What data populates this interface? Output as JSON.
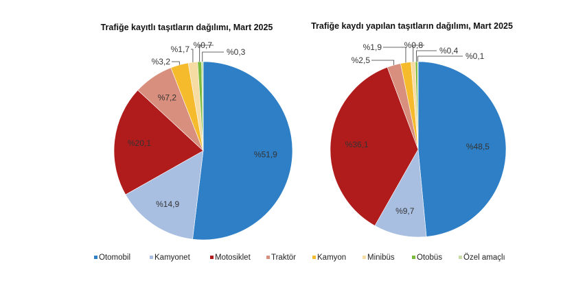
{
  "chart_data": [
    {
      "type": "pie",
      "title": "Trafiğe kayıtlı taşıtların dağılımı, Mart 2025",
      "categories": [
        "Otomobil",
        "Kamyonet",
        "Motosiklet",
        "Traktör",
        "Kamyon",
        "Minibüs",
        "Otobüs",
        "Özel amaçlı"
      ],
      "values": [
        51.9,
        14.9,
        20.1,
        7.2,
        3.2,
        1.7,
        0.7,
        0.3
      ],
      "labels": [
        "%51,9",
        "%14,9",
        "%20,1",
        "%7,2",
        "%3,2",
        "%1,7",
        "%0,7",
        "%0,3"
      ]
    },
    {
      "type": "pie",
      "title": "Trafiğe kaydı yapılan taşıtların dağılımı, Mart 2025",
      "categories": [
        "Otomobil",
        "Kamyonet",
        "Motosiklet",
        "Traktör",
        "Kamyon",
        "Minibüs",
        "Otobüs",
        "Özel amaçlı"
      ],
      "values": [
        48.5,
        9.7,
        36.1,
        2.5,
        1.9,
        0.8,
        0.4,
        0.1
      ],
      "labels": [
        "%48,5",
        "%9,7",
        "%36,1",
        "%2,5",
        "%1,9",
        "%0,8",
        "%0,4",
        "%0,1"
      ]
    }
  ],
  "legend": {
    "position": "bottom",
    "items": [
      "Otomobil",
      "Kamyonet",
      "Motosiklet",
      "Traktör",
      "Kamyon",
      "Minibüs",
      "Otobüs",
      "Özel amaçlı"
    ]
  },
  "colors": [
    "#2e7fc6",
    "#a9bfe2",
    "#b01c1c",
    "#d98f7d",
    "#f5bb2c",
    "#f6dca3",
    "#7cba3b",
    "#c8dda6"
  ]
}
